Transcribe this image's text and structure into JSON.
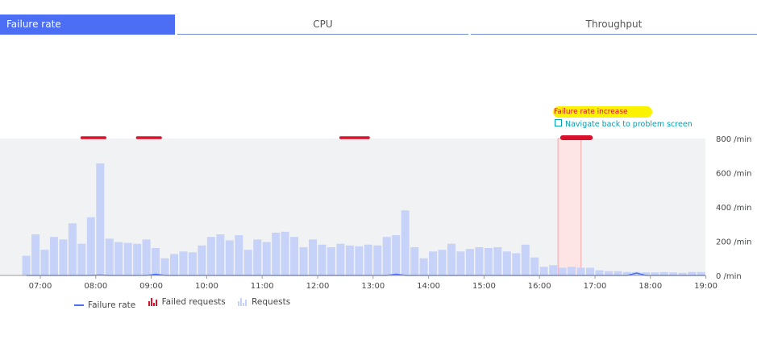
{
  "tabs": [
    {
      "label": "Failure rate",
      "active": true
    },
    {
      "label": "CPU",
      "active": false
    },
    {
      "label": "Throughput",
      "active": false
    }
  ],
  "annotation": {
    "title": "Failure rate increase",
    "link": "Navigate back to problem screen"
  },
  "colors": {
    "accent": "#4b6ef5",
    "failed": "#d8112d",
    "requests": "#c7d2f8",
    "problem_band": "#fde5e6",
    "plot_bg": "#f0f2f3",
    "highlight": "#fbf200",
    "link": "#00a1b2"
  },
  "legend": {
    "failure_rate": "Failure rate",
    "failed_requests": "Failed requests",
    "requests": "Requests"
  },
  "chart_data": {
    "type": "bar",
    "x_start": "06:40",
    "interval_minutes": 10,
    "x_ticks": [
      "07:00",
      "08:00",
      "09:00",
      "10:00",
      "11:00",
      "12:00",
      "13:00",
      "14:00",
      "15:00",
      "16:00",
      "17:00",
      "18:00",
      "19:00"
    ],
    "y_ticks": [
      "800 /min",
      "600 /min",
      "400 /min",
      "200 /min",
      "0 /min"
    ],
    "ylim": [
      0,
      800
    ],
    "series": [
      {
        "name": "Requests",
        "values": [
          115,
          240,
          150,
          225,
          210,
          305,
          185,
          340,
          655,
          215,
          195,
          190,
          185,
          210,
          160,
          100,
          125,
          140,
          135,
          175,
          225,
          240,
          205,
          235,
          150,
          210,
          195,
          250,
          255,
          225,
          165,
          210,
          180,
          165,
          185,
          175,
          170,
          180,
          175,
          225,
          235,
          380,
          165,
          100,
          140,
          150,
          185,
          140,
          155,
          165,
          160,
          165,
          140,
          130,
          180,
          105,
          50,
          60,
          45,
          50,
          45,
          45,
          30,
          25,
          25,
          20,
          20,
          18,
          18,
          20,
          18,
          15,
          20,
          20,
          18,
          15,
          20,
          18,
          18,
          15,
          15,
          18,
          18,
          25
        ]
      },
      {
        "name": "Failure rate",
        "values": [
          0,
          0,
          0,
          0,
          0,
          0,
          0,
          0,
          2,
          0,
          0,
          0,
          0,
          0,
          7,
          0,
          0,
          0,
          0,
          0,
          0,
          0,
          0,
          0,
          0,
          0,
          0,
          0,
          0,
          0,
          0,
          0,
          0,
          0,
          0,
          0,
          0,
          0,
          0,
          0,
          7,
          0,
          0,
          0,
          0,
          0,
          0,
          0,
          0,
          0,
          0,
          0,
          0,
          0,
          0,
          0,
          0,
          0,
          0,
          0,
          0,
          0,
          0,
          0,
          0,
          0,
          14,
          0,
          0,
          0,
          0,
          0,
          0,
          0,
          0,
          0,
          0,
          0,
          0,
          0,
          0,
          0,
          0,
          0
        ]
      }
    ],
    "failed_request_periods": [
      {
        "start": "07:45",
        "end": "08:10"
      },
      {
        "start": "08:45",
        "end": "09:10"
      },
      {
        "start": "12:25",
        "end": "12:55"
      },
      {
        "start": "16:25",
        "end": "16:55",
        "problem": true
      }
    ],
    "problem_period": {
      "start": "16:20",
      "end": "16:45"
    }
  }
}
